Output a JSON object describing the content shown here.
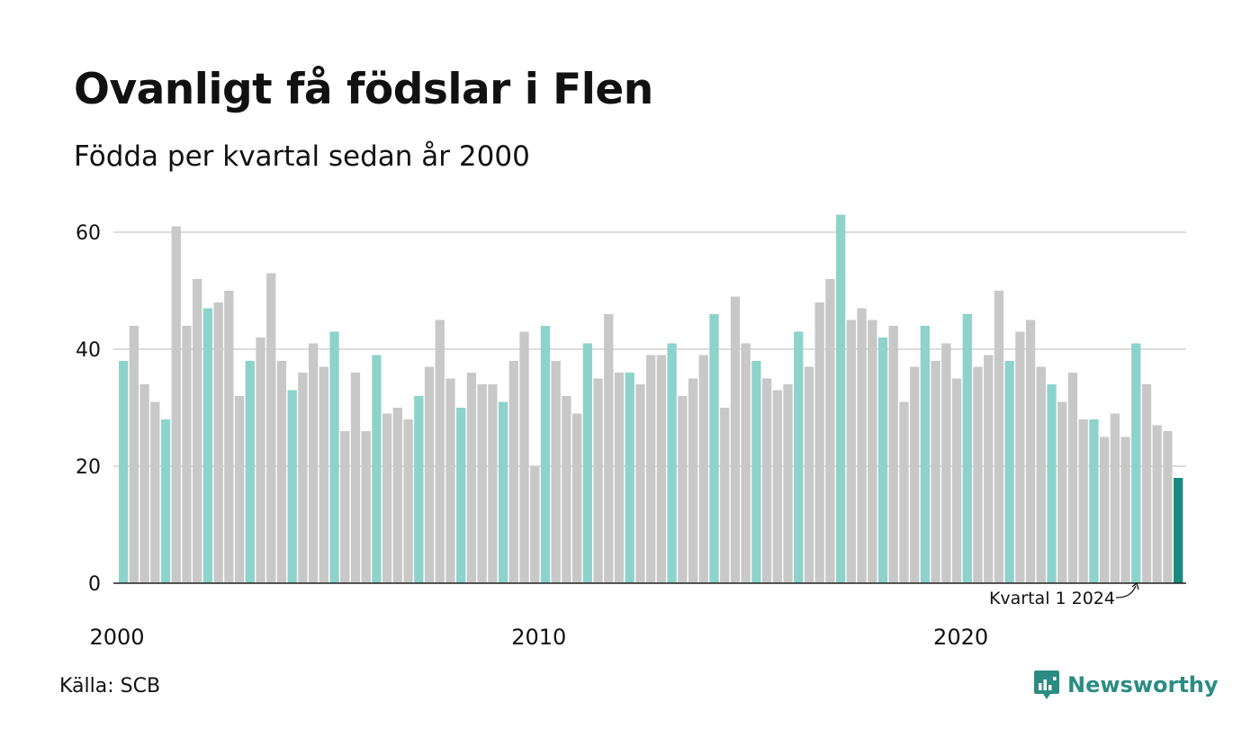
{
  "title": "Ovanligt få födslar i Flen",
  "subtitle": "Födda per kvartal sedan år 2000",
  "source": "Källa: SCB",
  "brand": "Newsworthy",
  "colors": {
    "q1": "#8dd3cb",
    "other": "#c8c8c8",
    "highlight": "#1a8a80",
    "grid": "#dddddd",
    "axis": "#222222",
    "brand": "#2b8c84"
  },
  "chart_data": {
    "type": "bar",
    "title": "Ovanligt få födslar i Flen",
    "subtitle": "Födda per kvartal sedan år 2000",
    "xlabel": "",
    "ylabel": "",
    "ylim": [
      0,
      63
    ],
    "yticks": [
      0,
      20,
      40,
      60
    ],
    "xtick_labels": [
      "2000",
      "2010",
      "2020"
    ],
    "start_year": 2000,
    "grid": true,
    "annotation": {
      "text": "Kvartal 1 2024",
      "target_index": 100
    },
    "values": [
      38,
      44,
      34,
      31,
      28,
      61,
      44,
      52,
      47,
      48,
      50,
      32,
      38,
      42,
      53,
      38,
      33,
      36,
      41,
      37,
      43,
      26,
      36,
      26,
      39,
      29,
      30,
      28,
      32,
      37,
      45,
      35,
      30,
      36,
      34,
      34,
      31,
      38,
      43,
      20,
      44,
      38,
      32,
      29,
      41,
      35,
      46,
      36,
      36,
      34,
      39,
      39,
      41,
      32,
      35,
      39,
      46,
      30,
      49,
      41,
      38,
      35,
      33,
      34,
      43,
      37,
      48,
      52,
      63,
      45,
      47,
      45,
      42,
      44,
      31,
      37,
      44,
      38,
      41,
      35,
      46,
      37,
      39,
      50,
      38,
      43,
      45,
      37,
      34,
      31,
      36,
      28,
      28,
      25,
      29,
      25,
      41,
      34,
      27,
      26,
      18
    ]
  }
}
